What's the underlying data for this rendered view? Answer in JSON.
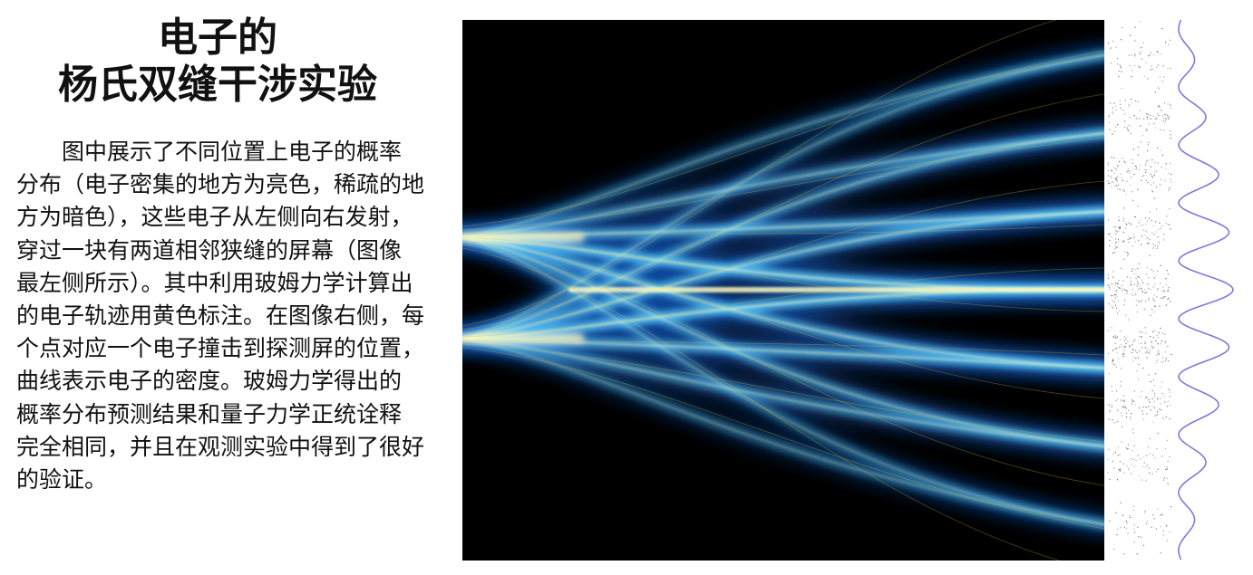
{
  "title": {
    "line1": "电子的",
    "line2": "杨氏双缝干涉实验"
  },
  "body": {
    "lines": [
      "图中展示了不同位置上电子的概率",
      "分布（电子密集的地方为亮色，稀疏的地",
      "方为暗色），这些电子从左侧向右发射，",
      "穿过一块有两道相邻狭缝的屏幕（图像",
      "最左侧所示）。其中利用玻姆力学计算出",
      "的电子轨迹用黄色标注。在图像右侧，每",
      "个点对应一个电子撞击到探测屏的位置，",
      "曲线表示电子的密度。玻姆力学得出的",
      "概率分布预测结果和量子力学正统诠释",
      "完全相同，并且在观测实验中得到了很好",
      "的验证。"
    ]
  },
  "figure": {
    "colors": {
      "background": "#000000",
      "beam_core": "#fff9c0",
      "beam_mid": "#5fd0ff",
      "beam_outer": "#1060d0",
      "trajectory": "#d8c23a",
      "density_curve": "#7e7ad8",
      "dots": "#555555"
    },
    "fringe_count": 7
  }
}
